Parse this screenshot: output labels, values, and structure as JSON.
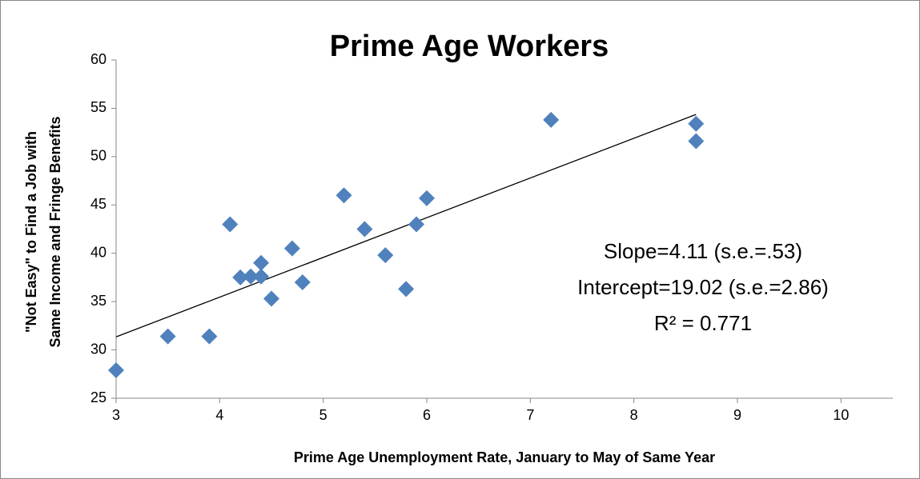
{
  "chart_data": {
    "type": "scatter",
    "title": "Prime Age Workers",
    "x_label": "Prime Age Unemployment Rate, January to May of Same Year",
    "y_label": [
      "\"Not Easy\" to Find a Job with",
      "Same Income and Fringe Benefits"
    ],
    "annotations": [
      "Slope=4.11 (s.e.=.53)",
      "Intercept=19.02 (s.e.=2.86)",
      "R² = 0.771"
    ],
    "trendline": {
      "slope": 4.11,
      "intercept": 19.02
    },
    "color": "#4f81bd",
    "x": [
      3,
      3.5,
      3.9,
      4.1,
      4.2,
      4.3,
      4.4,
      4.4,
      4.5,
      4.7,
      4.8,
      5.2,
      5.4,
      5.6,
      5.8,
      5.9,
      6.0,
      7.2,
      8.6,
      8.6
    ],
    "values": [
      27.9,
      31.4,
      31.4,
      43.0,
      37.5,
      37.6,
      39.0,
      37.6,
      35.3,
      40.5,
      37.0,
      46.0,
      42.5,
      39.8,
      36.3,
      43.0,
      45.7,
      53.8,
      53.4,
      51.6
    ],
    "xlim": [
      3,
      10.5
    ],
    "xticks": [
      3,
      4,
      5,
      6,
      7,
      8,
      9,
      10
    ],
    "ylim": [
      25,
      60
    ],
    "yticks": [
      25,
      30,
      35,
      40,
      45,
      50,
      55,
      60
    ],
    "grid": false
  }
}
